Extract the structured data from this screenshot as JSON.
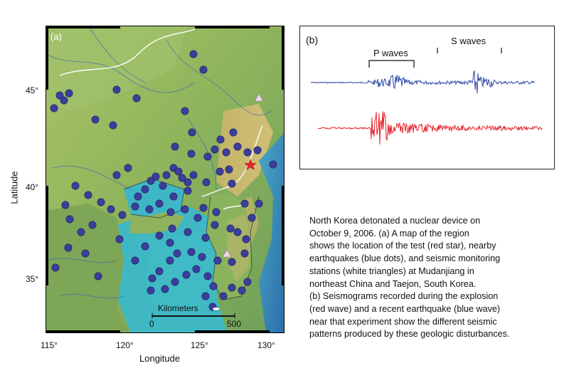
{
  "figure": {
    "map_panel_label": "(a)",
    "x_axis_label": "Longitude",
    "y_axis_label": "Latitude",
    "x_ticks": [
      "115°",
      "120°",
      "125°",
      "130°"
    ],
    "y_ticks": [
      "45°",
      "40°",
      "35°"
    ],
    "scale_bar": {
      "label": "Kilometers",
      "start": "0",
      "end": "500"
    },
    "seismogram_panel_label": "(b)",
    "p_waves_label": "P waves",
    "s_waves_label": "S waves",
    "colors": {
      "earthquake": "#3b3e9a",
      "explosion": "#e8232a",
      "earthquake_wave": "#2f4aa8",
      "station": "#f2d6e8"
    }
  },
  "caption": {
    "lines": [
      "North Korea detonated a nuclear device on",
      "October 9, 2006. (a) A map of the region",
      "shows the location of the test (red star), nearby",
      "earthquakes (blue dots), and seismic monitoring",
      "stations (white triangles) at Mudanjiang in",
      "northeast China and Taejon, South Korea.",
      "(b) Seismograms recorded during the explosion",
      "(red wave) and a recent earthquake (blue wave)",
      "near that experiment show the different seismic",
      "patterns produced by these geologic disturbances."
    ]
  }
}
